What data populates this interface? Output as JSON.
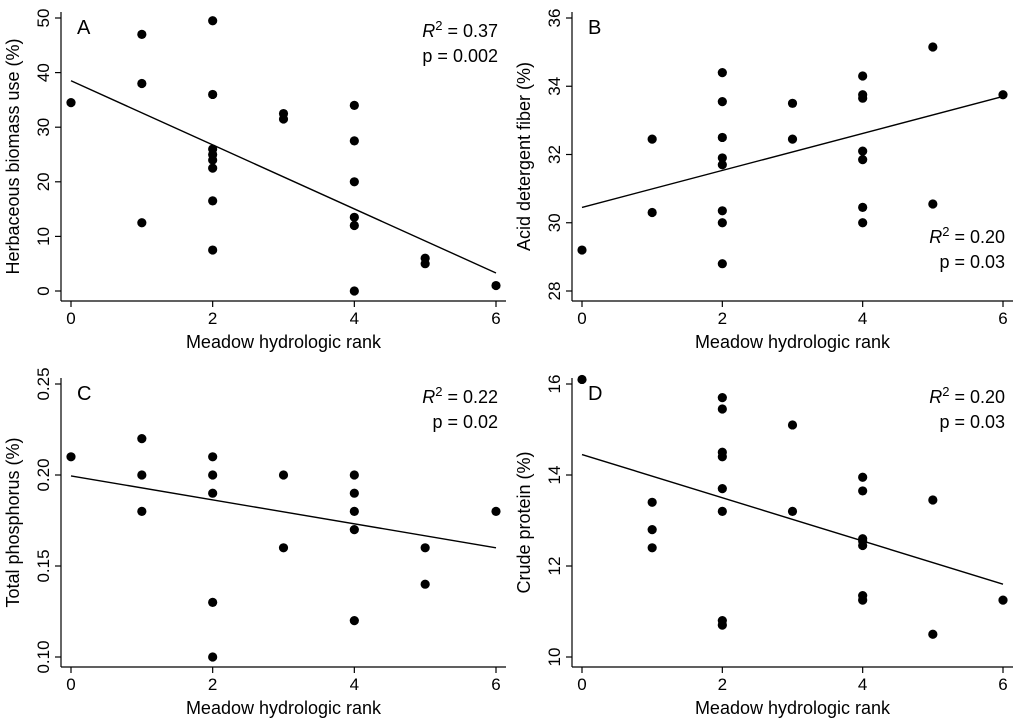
{
  "chart_data": [
    {
      "type": "scatter",
      "panel_label": "A",
      "xlabel": "Meadow hydrologic rank",
      "ylabel": "Herbaceous biomass use (%)",
      "xlim": [
        0,
        6
      ],
      "ylim": [
        0,
        50
      ],
      "xticks": [
        0,
        2,
        4,
        6
      ],
      "yticks": [
        0,
        10,
        20,
        30,
        40,
        50
      ],
      "tick_labels_x": [
        "0",
        "2",
        "4",
        "6"
      ],
      "tick_labels_y": [
        "0",
        "10",
        "20",
        "30",
        "40",
        "50"
      ],
      "stats": {
        "r2_label": "R",
        "r2_sup": "2",
        "r2_value": " = 0.37",
        "p": "p = 0.002"
      },
      "stats_position": "top-right",
      "points": [
        [
          0,
          34.5
        ],
        [
          1,
          47
        ],
        [
          1,
          38
        ],
        [
          1,
          12.5
        ],
        [
          2,
          49.5
        ],
        [
          2,
          36
        ],
        [
          2,
          26
        ],
        [
          2,
          25
        ],
        [
          2,
          24
        ],
        [
          2,
          22.5
        ],
        [
          2,
          16.5
        ],
        [
          2,
          7.5
        ],
        [
          3,
          32.5
        ],
        [
          3,
          31.5
        ],
        [
          4,
          34
        ],
        [
          4,
          27.5
        ],
        [
          4,
          20
        ],
        [
          4,
          13.5
        ],
        [
          4,
          12
        ],
        [
          4,
          0
        ],
        [
          5,
          6
        ],
        [
          5,
          5
        ],
        [
          6,
          1
        ]
      ],
      "fit": {
        "x": [
          0,
          6
        ],
        "y": [
          38.5,
          3.3
        ]
      }
    },
    {
      "type": "scatter",
      "panel_label": "B",
      "xlabel": "Meadow hydrologic rank",
      "ylabel": "Acid detergent fiber (%)",
      "xlim": [
        0,
        6
      ],
      "ylim": [
        28,
        36
      ],
      "xticks": [
        0,
        2,
        4,
        6
      ],
      "yticks": [
        28,
        30,
        32,
        34,
        36
      ],
      "tick_labels_x": [
        "0",
        "2",
        "4",
        "6"
      ],
      "tick_labels_y": [
        "28",
        "30",
        "32",
        "34",
        "36"
      ],
      "stats": {
        "r2_label": "R",
        "r2_sup": "2",
        "r2_value": " = 0.20",
        "p": "p = 0.03"
      },
      "stats_position": "bottom-right",
      "points": [
        [
          0,
          29.2
        ],
        [
          1,
          32.45
        ],
        [
          1,
          30.3
        ],
        [
          2,
          34.4
        ],
        [
          2,
          33.55
        ],
        [
          2,
          32.5
        ],
        [
          2,
          31.9
        ],
        [
          2,
          31.7
        ],
        [
          2,
          30.35
        ],
        [
          2,
          30.0
        ],
        [
          2,
          28.8
        ],
        [
          3,
          33.5
        ],
        [
          3,
          32.45
        ],
        [
          4,
          34.3
        ],
        [
          4,
          33.75
        ],
        [
          4,
          33.65
        ],
        [
          4,
          32.1
        ],
        [
          4,
          31.85
        ],
        [
          4,
          30.45
        ],
        [
          4,
          30.0
        ],
        [
          5,
          35.15
        ],
        [
          5,
          30.55
        ],
        [
          6,
          33.75
        ]
      ],
      "fit": {
        "x": [
          0,
          6
        ],
        "y": [
          30.45,
          33.7
        ]
      }
    },
    {
      "type": "scatter",
      "panel_label": "C",
      "xlabel": "Meadow hydrologic rank",
      "ylabel": "Total phosphorus (%)",
      "xlim": [
        0,
        6
      ],
      "ylim": [
        0.1,
        0.25
      ],
      "xticks": [
        0,
        2,
        4,
        6
      ],
      "yticks": [
        0.1,
        0.15,
        0.2,
        0.25
      ],
      "tick_labels_x": [
        "0",
        "2",
        "4",
        "6"
      ],
      "tick_labels_y": [
        "0.10",
        "0.15",
        "0.20",
        "0.25"
      ],
      "stats": {
        "r2_label": "R",
        "r2_sup": "2",
        "r2_value": " = 0.22",
        "p": "p = 0.02"
      },
      "stats_position": "top-right",
      "points": [
        [
          0,
          0.21
        ],
        [
          1,
          0.22
        ],
        [
          1,
          0.2
        ],
        [
          1,
          0.18
        ],
        [
          2,
          0.21
        ],
        [
          2,
          0.2
        ],
        [
          2,
          0.19
        ],
        [
          2,
          0.13
        ],
        [
          2,
          0.1
        ],
        [
          3,
          0.2
        ],
        [
          3,
          0.16
        ],
        [
          4,
          0.2
        ],
        [
          4,
          0.19
        ],
        [
          4,
          0.18
        ],
        [
          4,
          0.17
        ],
        [
          4,
          0.12
        ],
        [
          5,
          0.16
        ],
        [
          5,
          0.14
        ],
        [
          6,
          0.18
        ]
      ],
      "fit": {
        "x": [
          0,
          6
        ],
        "y": [
          0.1995,
          0.16
        ]
      }
    },
    {
      "type": "scatter",
      "panel_label": "D",
      "xlabel": "Meadow hydrologic rank",
      "ylabel": "Crude protein (%)",
      "xlim": [
        0,
        6
      ],
      "ylim": [
        10,
        16
      ],
      "xticks": [
        0,
        2,
        4,
        6
      ],
      "yticks": [
        10,
        12,
        14,
        16
      ],
      "tick_labels_x": [
        "0",
        "2",
        "4",
        "6"
      ],
      "tick_labels_y": [
        "10",
        "12",
        "14",
        "16"
      ],
      "stats": {
        "r2_label": "R",
        "r2_sup": "2",
        "r2_value": " = 0.20",
        "p": "p = 0.03"
      },
      "stats_position": "top-right",
      "points": [
        [
          0,
          16.1
        ],
        [
          1,
          13.4
        ],
        [
          1,
          12.8
        ],
        [
          1,
          12.4
        ],
        [
          2,
          15.7
        ],
        [
          2,
          15.45
        ],
        [
          2,
          14.5
        ],
        [
          2,
          14.4
        ],
        [
          2,
          13.7
        ],
        [
          2,
          13.2
        ],
        [
          2,
          10.8
        ],
        [
          2,
          10.7
        ],
        [
          3,
          15.1
        ],
        [
          3,
          13.2
        ],
        [
          4,
          13.95
        ],
        [
          4,
          13.65
        ],
        [
          4,
          12.6
        ],
        [
          4,
          12.55
        ],
        [
          4,
          12.45
        ],
        [
          4,
          11.35
        ],
        [
          4,
          11.25
        ],
        [
          5,
          13.45
        ],
        [
          5,
          10.5
        ],
        [
          6,
          11.25
        ]
      ],
      "fit": {
        "x": [
          0,
          6
        ],
        "y": [
          14.45,
          11.6
        ]
      }
    }
  ]
}
